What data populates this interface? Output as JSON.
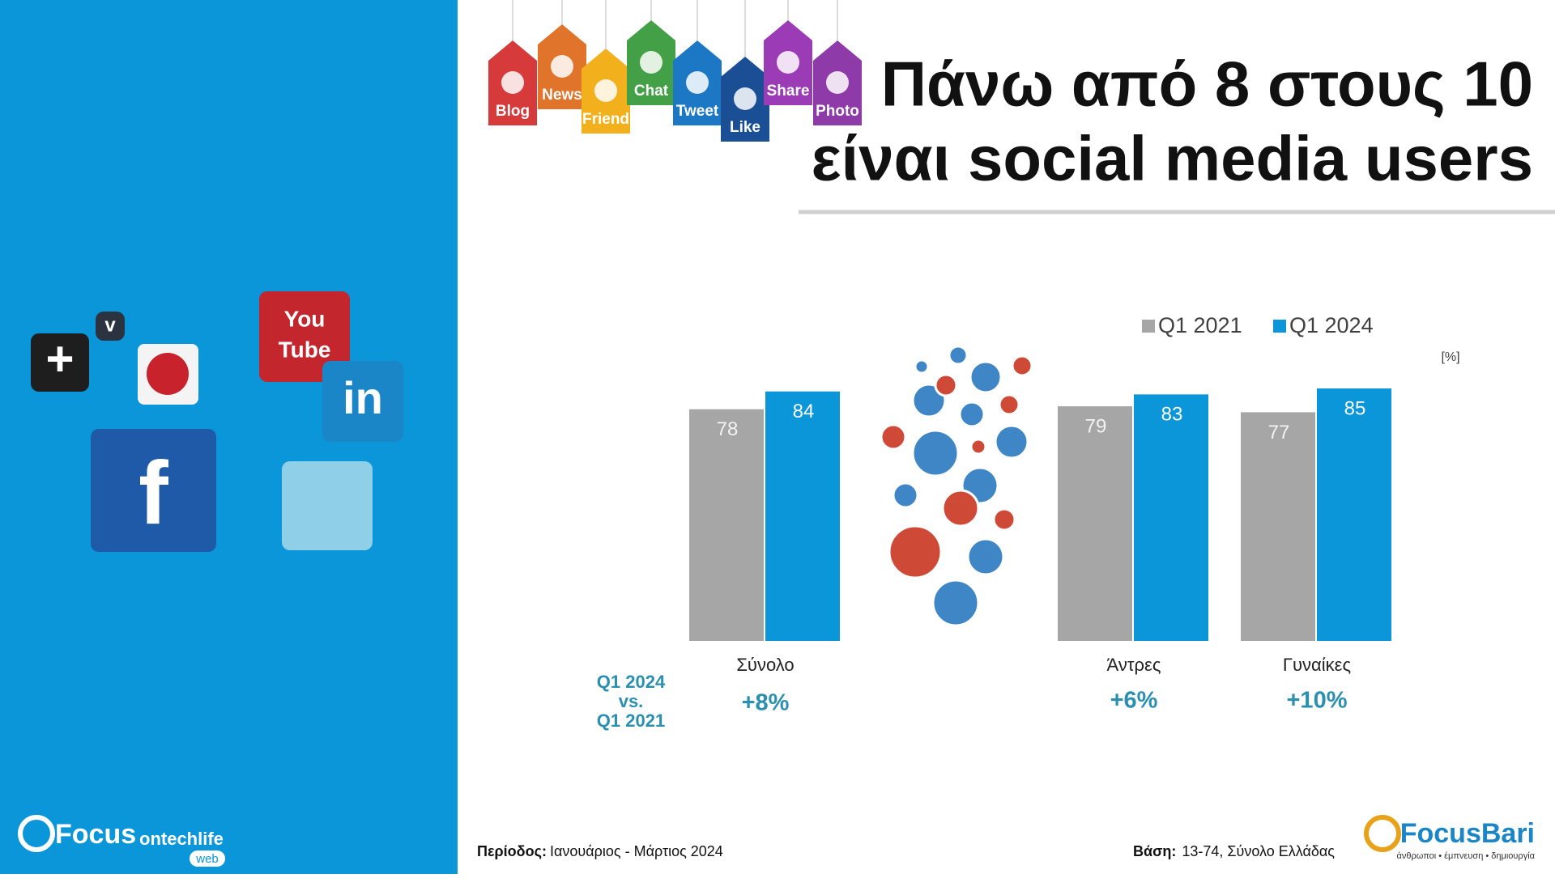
{
  "slide": {
    "title_lines": [
      "Πάνω από 8 στους 10",
      "είναι social media users"
    ],
    "tags": [
      "Blog",
      "News",
      "Friend",
      "Chat",
      "Tweet",
      "Like",
      "Share",
      "Photo"
    ],
    "icons": [
      "You",
      "Tube",
      "in",
      "f",
      "v",
      "+"
    ],
    "period_label": "Περίοδος:",
    "period_value": "Ιανουάριος - Μάρτιος 2024",
    "base_label": "Βάση:",
    "base_value": "13-74, Σύνολο Ελλάδας",
    "logo_left": [
      "Focus",
      "ontechlife",
      "web"
    ],
    "logo_right": [
      "FocusBari",
      "άνθρωποι • έμπνευση • δημιουργία"
    ]
  },
  "chart_data": {
    "type": "bar",
    "categories": [
      "Σύνολο",
      "Άντρες",
      "Γυναίκες"
    ],
    "series": [
      {
        "name": "Q1 2021",
        "color": "#a6a6a6",
        "values": [
          78,
          79,
          77
        ]
      },
      {
        "name": "Q1 2024",
        "color": "#0a96d9",
        "values": [
          84,
          83,
          85
        ]
      }
    ],
    "ylim": [
      0,
      100
    ],
    "unit_label": "[%]",
    "change_label": [
      "Q1 2024",
      "vs.",
      "Q1 2021"
    ],
    "changes": {
      "values": [
        8,
        6,
        10
      ],
      "value_labels": [
        "+8%",
        "+6%",
        "+10%"
      ]
    }
  }
}
